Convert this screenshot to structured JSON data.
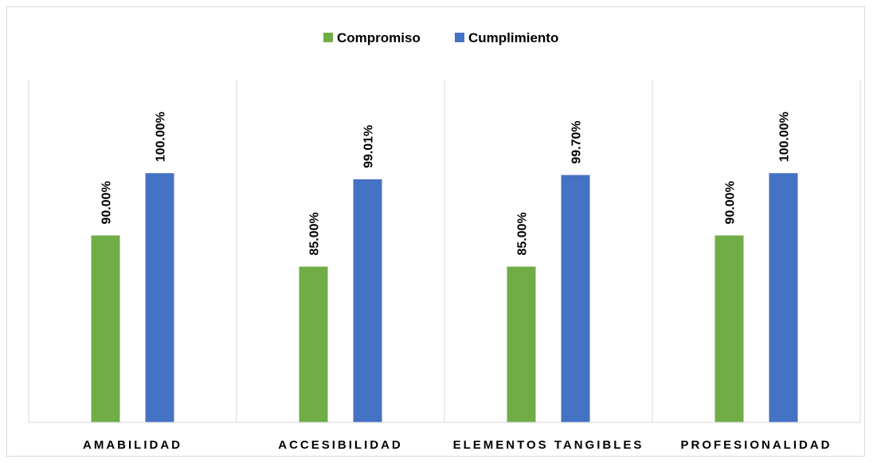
{
  "chart_data": {
    "type": "bar",
    "categories": [
      "AMABILIDAD",
      "ACCESIBILIDAD",
      "ELEMENTOS TANGIBLES",
      "PROFESIONALIDAD"
    ],
    "series": [
      {
        "name": "Compromiso",
        "color": "#70ad47",
        "values": [
          90.0,
          85.0,
          85.0,
          90.0
        ],
        "labels": [
          "90.00%",
          "85.00%",
          "85.00%",
          "90.00%"
        ]
      },
      {
        "name": "Cumplimiento",
        "color": "#4472c4",
        "values": [
          100.0,
          99.01,
          99.7,
          100.0
        ],
        "labels": [
          "100.00%",
          "99.01%",
          "99.70%",
          "100.00%"
        ]
      }
    ],
    "title": "",
    "xlabel": "",
    "ylabel": "",
    "ylim": [
      60,
      115
    ],
    "grid": false,
    "category_separators": true,
    "legend": "top-center",
    "value_label_orientation": "vertical"
  }
}
